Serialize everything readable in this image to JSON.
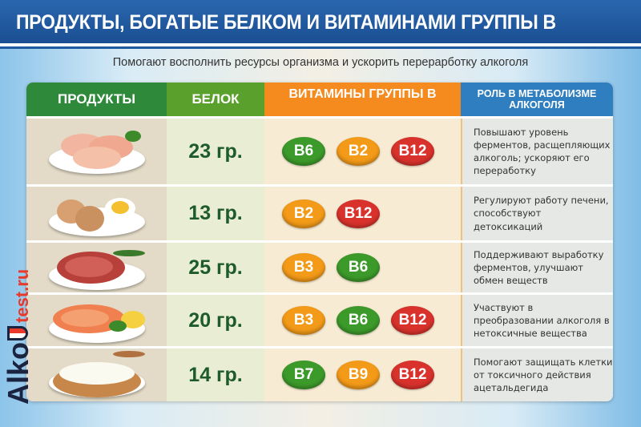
{
  "title": "ПРОДУКТЫ, БОГАТЫЕ БЕЛКОМ И ВИТАМИНАМИ ГРУППЫ В",
  "subtitle": "Помогают восполнить ресурсы организма и ускорить перерарботку алкоголя",
  "columns": {
    "products": "ПРОДУКТЫ",
    "protein": "БЕЛОК",
    "vitamins": "ВИТАМИНЫ ГРУППЫ В",
    "role": "РОЛЬ В МЕТАБОЛИЗМЕ АЛКОГОЛЯ"
  },
  "header_colors": {
    "products": "#2e8a3a",
    "protein": "#5aa02c",
    "vitamins": "#f58a1f",
    "role": "#2f7ec0"
  },
  "vitamin_colors": {
    "green": "#3c9a2a",
    "orange": "#f39a18",
    "red": "#d9322c"
  },
  "rows": [
    {
      "product": "chicken-breast",
      "protein": "23 гр.",
      "vitamins": [
        {
          "label": "B6",
          "color": "green"
        },
        {
          "label": "B2",
          "color": "orange"
        },
        {
          "label": "B12",
          "color": "red"
        }
      ],
      "role": "Повышают уровень ферментов, расщепляющих алкоголь; ускоряют его переработку"
    },
    {
      "product": "eggs",
      "protein": "13 гр.",
      "vitamins": [
        {
          "label": "B2",
          "color": "orange"
        },
        {
          "label": "B12",
          "color": "red"
        }
      ],
      "role": "Регулируют работу печени, способствуют детоксикаций"
    },
    {
      "product": "beef-steak",
      "protein": "25 гр.",
      "vitamins": [
        {
          "label": "B3",
          "color": "orange"
        },
        {
          "label": "B6",
          "color": "green"
        }
      ],
      "role": "Поддерживают выработку ферментов, улучшают обмен веществ"
    },
    {
      "product": "salmon",
      "protein": "20 гр.",
      "vitamins": [
        {
          "label": "B3",
          "color": "orange"
        },
        {
          "label": "B6",
          "color": "green"
        },
        {
          "label": "B12",
          "color": "red"
        }
      ],
      "role": "Участвуют в преобразовании алкоголя в нетоксичные вещества"
    },
    {
      "product": "cottage-cheese",
      "protein": "14 гр.",
      "vitamins": [
        {
          "label": "B7",
          "color": "green"
        },
        {
          "label": "B9",
          "color": "orange"
        },
        {
          "label": "B12",
          "color": "red"
        }
      ],
      "role": "Помогают защищать клетки от токсичного действия ацетальдегида"
    }
  ],
  "logo": {
    "main": "Alko",
    "domain": "test.ru"
  }
}
